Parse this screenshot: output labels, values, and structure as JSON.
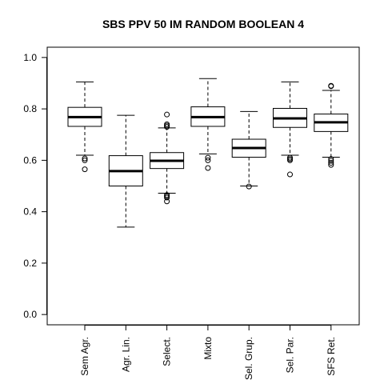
{
  "chart_data": {
    "type": "boxplot",
    "title": "SBS PPV 50 IM RANDOM BOOLEAN 4",
    "xlabel": "",
    "ylabel": "",
    "ylim": [
      0,
      1
    ],
    "yticks": [
      "0.0",
      "0.2",
      "0.4",
      "0.6",
      "0.8",
      "1.0"
    ],
    "ytick_values": [
      0,
      0.2,
      0.4,
      0.6,
      0.8,
      1.0
    ],
    "categories": [
      "Sem Agr.",
      "Agr. Lin.",
      "Select.",
      "Mixto",
      "Sel. Grup.",
      "Sel. Par.",
      "SFS Ret."
    ],
    "boxes": [
      {
        "min": 0.62,
        "q1": 0.732,
        "median": 0.768,
        "q3": 0.806,
        "max": 0.905,
        "outliers": [
          0.607,
          0.6,
          0.565
        ]
      },
      {
        "min": 0.34,
        "q1": 0.5,
        "median": 0.558,
        "q3": 0.618,
        "max": 0.775,
        "outliers": []
      },
      {
        "min": 0.472,
        "q1": 0.568,
        "median": 0.598,
        "q3": 0.63,
        "max": 0.726,
        "outliers": [
          0.778,
          0.74,
          0.735,
          0.73,
          0.465,
          0.46,
          0.455,
          0.44
        ]
      },
      {
        "min": 0.625,
        "q1": 0.732,
        "median": 0.768,
        "q3": 0.808,
        "max": 0.918,
        "outliers": [
          0.61,
          0.6,
          0.57
        ]
      },
      {
        "min": 0.5,
        "q1": 0.612,
        "median": 0.648,
        "q3": 0.682,
        "max": 0.79,
        "outliers": [
          0.498
        ]
      },
      {
        "min": 0.62,
        "q1": 0.728,
        "median": 0.763,
        "q3": 0.802,
        "max": 0.905,
        "outliers": [
          0.61,
          0.605,
          0.6,
          0.545
        ]
      },
      {
        "min": 0.612,
        "q1": 0.712,
        "median": 0.748,
        "q3": 0.78,
        "max": 0.872,
        "outliers": [
          0.89,
          0.888,
          0.605,
          0.598,
          0.59,
          0.582
        ]
      }
    ]
  }
}
